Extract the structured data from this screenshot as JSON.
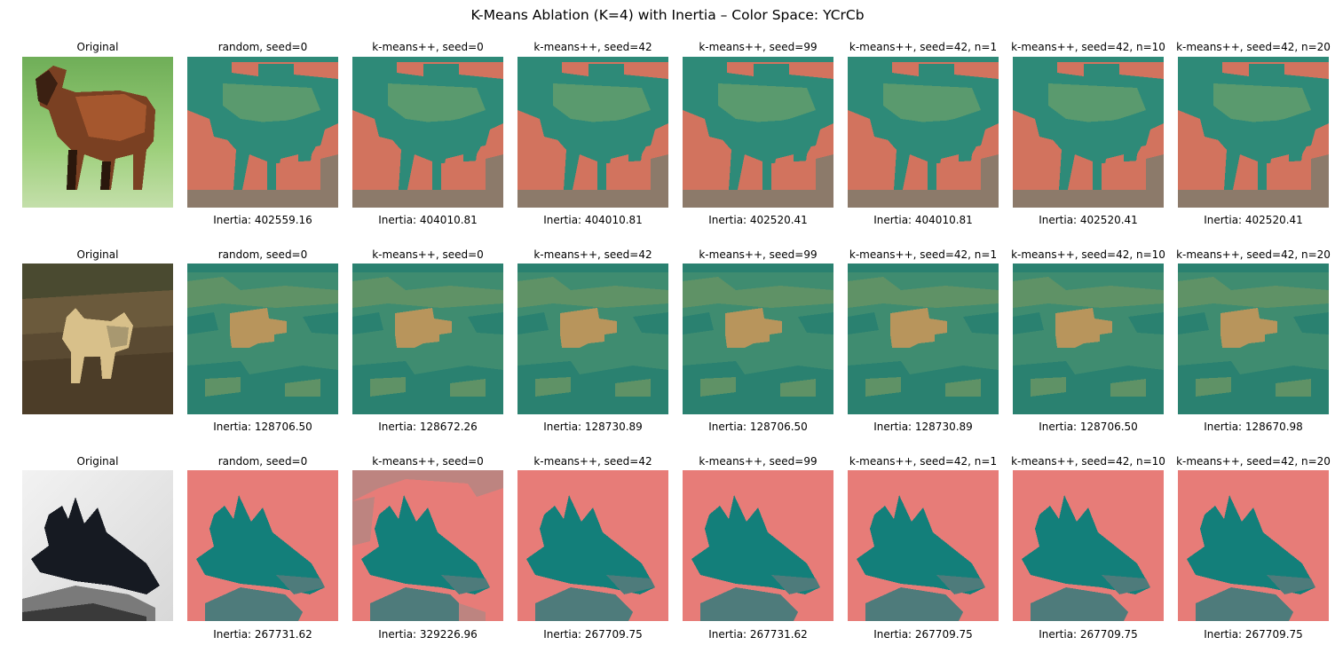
{
  "figure": {
    "title": "K-Means Ablation (K=4) with Inertia – Color Space: YCrCb"
  },
  "rows": [
    {
      "original_label": "Original",
      "subject": "horse",
      "panels": [
        {
          "title": "random, seed=0",
          "inertia": "Inertia: 402559.16"
        },
        {
          "title": "k-means++, seed=0",
          "inertia": "Inertia: 404010.81"
        },
        {
          "title": "k-means++, seed=42",
          "inertia": "Inertia: 404010.81"
        },
        {
          "title": "k-means++, seed=99",
          "inertia": "Inertia: 402520.41"
        },
        {
          "title": "k-means++, seed=42, n=1",
          "inertia": "Inertia: 404010.81"
        },
        {
          "title": "k-means++, seed=42, n=10",
          "inertia": "Inertia: 402520.41"
        },
        {
          "title": "k-means++, seed=42, n=20",
          "inertia": "Inertia: 402520.41"
        }
      ]
    },
    {
      "original_label": "Original",
      "subject": "deer",
      "panels": [
        {
          "title": "random, seed=0",
          "inertia": "Inertia: 128706.50"
        },
        {
          "title": "k-means++, seed=0",
          "inertia": "Inertia: 128672.26"
        },
        {
          "title": "k-means++, seed=42",
          "inertia": "Inertia: 128730.89"
        },
        {
          "title": "k-means++, seed=99",
          "inertia": "Inertia: 128706.50"
        },
        {
          "title": "k-means++, seed=42, n=1",
          "inertia": "Inertia: 128730.89"
        },
        {
          "title": "k-means++, seed=42, n=10",
          "inertia": "Inertia: 128706.50"
        },
        {
          "title": "k-means++, seed=42, n=20",
          "inertia": "Inertia: 128670.98"
        }
      ]
    },
    {
      "original_label": "Original",
      "subject": "airplane",
      "panels": [
        {
          "title": "random, seed=0",
          "inertia": "Inertia: 267731.62"
        },
        {
          "title": "k-means++, seed=0",
          "inertia": "Inertia: 329226.96"
        },
        {
          "title": "k-means++, seed=42",
          "inertia": "Inertia: 267709.75"
        },
        {
          "title": "k-means++, seed=99",
          "inertia": "Inertia: 267731.62"
        },
        {
          "title": "k-means++, seed=42, n=1",
          "inertia": "Inertia: 267709.75"
        },
        {
          "title": "k-means++, seed=42, n=10",
          "inertia": "Inertia: 267709.75"
        },
        {
          "title": "k-means++, seed=42, n=20",
          "inertia": "Inertia: 267709.75"
        }
      ]
    }
  ],
  "colors": {
    "horse_teal": "#2e8a78",
    "horse_green": "#5a9a6e",
    "horse_salmon": "#d2735e",
    "horse_brown": "#8c7a6a",
    "deer_green": "#3f8c70",
    "deer_teal": "#2a8170",
    "deer_sage": "#5f9266",
    "deer_tan": "#b8955c",
    "plane_pink": "#e77c78",
    "plane_teal": "#137f7a",
    "plane_slate": "#4e7b7b",
    "plane_mauve": "#bd8480"
  }
}
